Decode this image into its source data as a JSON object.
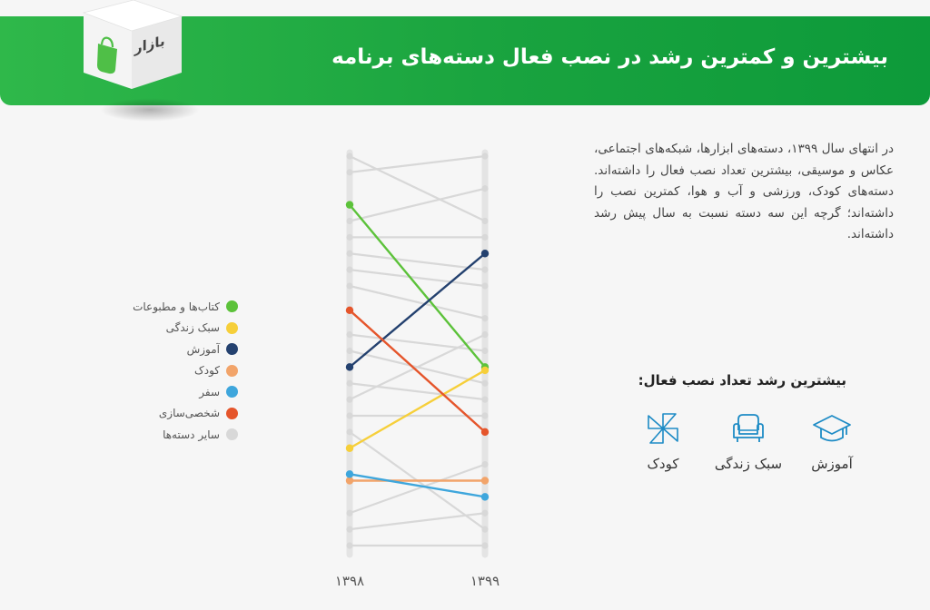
{
  "header": {
    "title": "بیشترین و کمترین رشد در نصب فعال دسته‌های برنامه",
    "logo_text": "بازار"
  },
  "description": "در انتهای سال ۱۳۹۹، دسته‌های ابزارها، شبکه‌های اجتماعی، عکاس و موسیقی، بیشترین تعداد نصب فعال را داشته‌اند. دسته‌های کودک، ورزشی و آب و هوا، کمترین نصب را داشته‌اند؛ گرچه این سه دسته نسبت به سال پیش رشد داشته‌اند.",
  "highest_growth": {
    "title": "بیشترین رشد تعداد نصب فعال:",
    "items": [
      {
        "label": "آموزش",
        "icon": "graduation-cap-icon"
      },
      {
        "label": "سبک زندگی",
        "icon": "armchair-icon"
      },
      {
        "label": "کودک",
        "icon": "pinwheel-icon"
      }
    ]
  },
  "colors": {
    "books": "#5cc23a",
    "lifestyle": "#f6cf3a",
    "education": "#24416f",
    "kids": "#f2a46a",
    "travel": "#3ea6dc",
    "personalization": "#e5552b",
    "others": "#d8d8d8",
    "brand": "#1aa53f"
  },
  "chart_data": {
    "type": "slope",
    "x": [
      "۱۳۹۸",
      "۱۳۹۹"
    ],
    "value_meaning": "rank",
    "rank_range": [
      1,
      25
    ],
    "series": [
      {
        "name": "کتاب‌ها و مطبوعات",
        "color": "#5cc23a",
        "values": [
          4,
          14
        ]
      },
      {
        "name": "سبک زندگی",
        "color": "#f6cf3a",
        "values": [
          19,
          14.2
        ]
      },
      {
        "name": "آموزش",
        "color": "#24416f",
        "values": [
          14,
          7
        ]
      },
      {
        "name": "کودک",
        "color": "#f2a46a",
        "values": [
          21,
          21
        ]
      },
      {
        "name": "سفر",
        "color": "#3ea6dc",
        "values": [
          20.6,
          22
        ]
      },
      {
        "name": "شخصی‌سازی",
        "color": "#e5552b",
        "values": [
          10.5,
          18
        ]
      },
      {
        "name": "سایر دسته‌ها",
        "color": "#d8d8d8",
        "others": [
          [
            1,
            5
          ],
          [
            2,
            1
          ],
          [
            5,
            3
          ],
          [
            6,
            6
          ],
          [
            7,
            8
          ],
          [
            8,
            9
          ],
          [
            9,
            11
          ],
          [
            12,
            13
          ],
          [
            13,
            15
          ],
          [
            15,
            16
          ],
          [
            16,
            12
          ],
          [
            17,
            17
          ],
          [
            18,
            24
          ],
          [
            23,
            20
          ],
          [
            24,
            23
          ],
          [
            25,
            25
          ]
        ]
      }
    ]
  }
}
